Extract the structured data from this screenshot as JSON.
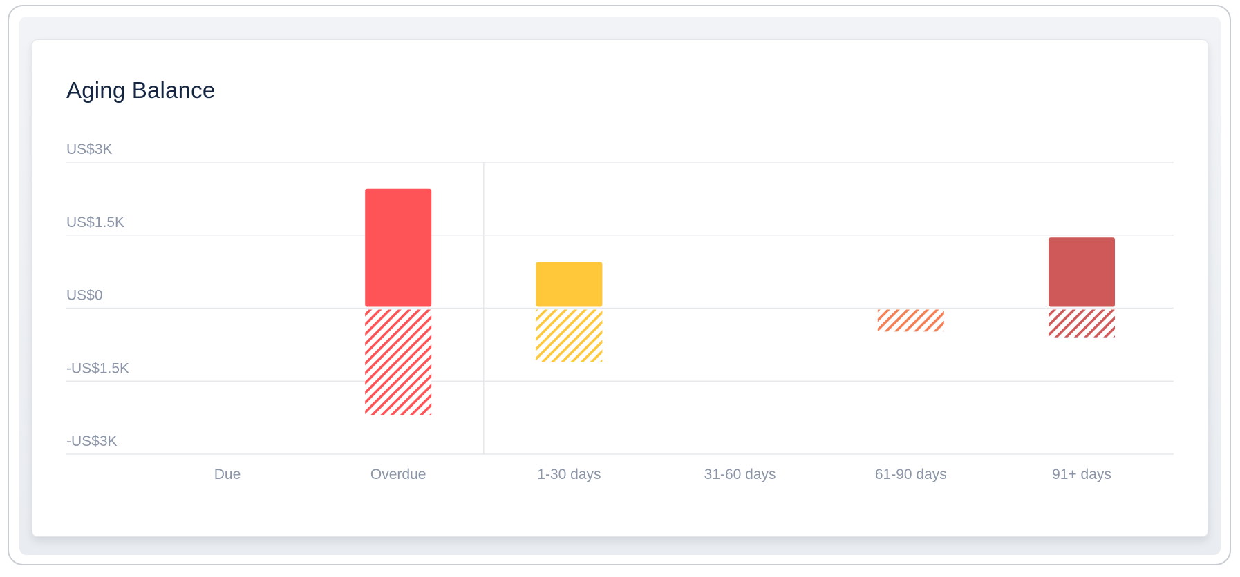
{
  "card": {
    "title": "Aging Balance"
  },
  "colors": {
    "gridline": "#e6e8ec",
    "tick_text": "#8b95a7",
    "title_text": "#142542"
  },
  "chart_data": {
    "type": "bar",
    "title": "Aging Balance",
    "xlabel": "",
    "ylabel": "",
    "categories": [
      "Due",
      "Overdue",
      "1-30 days",
      "31-60 days",
      "61-90 days",
      "91+ days"
    ],
    "ylim": [
      -3000,
      3000
    ],
    "y_ticks": [
      {
        "value": 3000,
        "label": "US$3K"
      },
      {
        "value": 1500,
        "label": "US$1.5K"
      },
      {
        "value": 0,
        "label": "US$0"
      },
      {
        "value": -1500,
        "label": "-US$1.5K"
      },
      {
        "value": -3000,
        "label": "-US$3K"
      }
    ],
    "grid": true,
    "divider_after_category": "Overdue",
    "series": [
      {
        "style": "solid",
        "values": [
          0,
          2450,
          950,
          0,
          0,
          1450
        ],
        "colors": [
          "#ff5457",
          "#ff5457",
          "#ffc83a",
          "#f57f54",
          "#f57f54",
          "#cf5858"
        ]
      },
      {
        "style": "hatched",
        "values": [
          0,
          -2200,
          -1100,
          0,
          -480,
          -600
        ],
        "colors": [
          "#ff5457",
          "#ff5457",
          "#ffc83a",
          "#f57f54",
          "#f57f54",
          "#cf5858"
        ]
      }
    ]
  }
}
